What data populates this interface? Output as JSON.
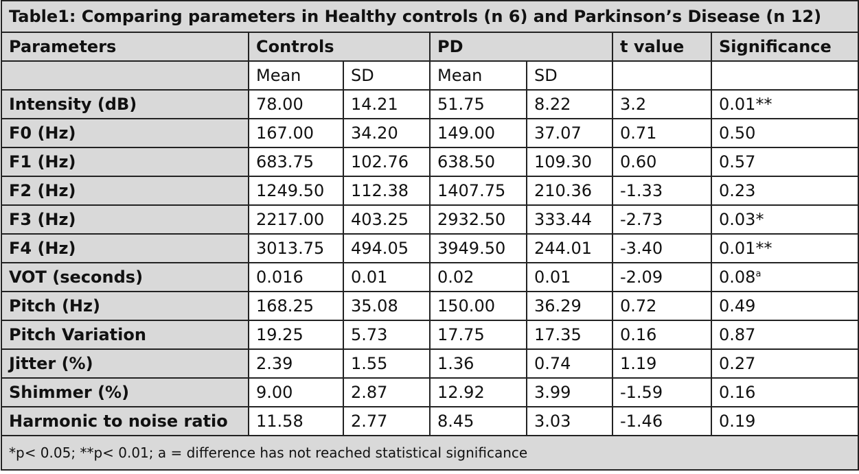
{
  "table": {
    "title": "Table1: Comparing parameters in Healthy controls (n 6) and Parkinson’s Disease (n 12)",
    "headers": {
      "parameters": "Parameters",
      "controls": "Controls",
      "pd": "PD",
      "t_value": "t value",
      "significance": "Significance"
    },
    "subheaders": {
      "controls_mean": "Mean",
      "controls_sd": "SD",
      "pd_mean": "Mean",
      "pd_sd": "SD"
    },
    "rows": [
      {
        "parameter": "Intensity (dB)",
        "controls_mean": "78.00",
        "controls_sd": "14.21",
        "pd_mean": "51.75",
        "pd_sd": "8.22",
        "t_value": "3.2",
        "significance": "0.01**",
        "sig_sup": ""
      },
      {
        "parameter": "F0 (Hz)",
        "controls_mean": "167.00",
        "controls_sd": "34.20",
        "pd_mean": "149.00",
        "pd_sd": "37.07",
        "t_value": "0.71",
        "significance": "0.50",
        "sig_sup": ""
      },
      {
        "parameter": "F1 (Hz)",
        "controls_mean": "683.75",
        "controls_sd": "102.76",
        "pd_mean": "638.50",
        "pd_sd": "109.30",
        "t_value": "0.60",
        "significance": "0.57",
        "sig_sup": ""
      },
      {
        "parameter": "F2 (Hz)",
        "controls_mean": "1249.50",
        "controls_sd": "112.38",
        "pd_mean": "1407.75",
        "pd_sd": "210.36",
        "t_value": "-1.33",
        "significance": "0.23",
        "sig_sup": ""
      },
      {
        "parameter": "F3 (Hz)",
        "controls_mean": "2217.00",
        "controls_sd": "403.25",
        "pd_mean": "2932.50",
        "pd_sd": "333.44",
        "t_value": "-2.73",
        "significance": "0.03*",
        "sig_sup": ""
      },
      {
        "parameter": "F4 (Hz)",
        "controls_mean": "3013.75",
        "controls_sd": "494.05",
        "pd_mean": "3949.50",
        "pd_sd": "244.01",
        "t_value": "-3.40",
        "significance": "0.01**",
        "sig_sup": ""
      },
      {
        "parameter": "VOT (seconds)",
        "controls_mean": "0.016",
        "controls_sd": "0.01",
        "pd_mean": "0.02",
        "pd_sd": "0.01",
        "t_value": "-2.09",
        "significance": "0.08",
        "sig_sup": "a"
      },
      {
        "parameter": "Pitch (Hz)",
        "controls_mean": "168.25",
        "controls_sd": "35.08",
        "pd_mean": "150.00",
        "pd_sd": "36.29",
        "t_value": "0.72",
        "significance": "0.49",
        "sig_sup": ""
      },
      {
        "parameter": "Pitch Variation",
        "controls_mean": "19.25",
        "controls_sd": "5.73",
        "pd_mean": "17.75",
        "pd_sd": "17.35",
        "t_value": "0.16",
        "significance": "0.87",
        "sig_sup": ""
      },
      {
        "parameter": "Jitter (%)",
        "controls_mean": "2.39",
        "controls_sd": "1.55",
        "pd_mean": "1.36",
        "pd_sd": "0.74",
        "t_value": "1.19",
        "significance": "0.27",
        "sig_sup": ""
      },
      {
        "parameter": "Shimmer (%)",
        "controls_mean": "9.00",
        "controls_sd": "2.87",
        "pd_mean": "12.92",
        "pd_sd": "3.99",
        "t_value": "-1.59",
        "significance": "0.16",
        "sig_sup": ""
      },
      {
        "parameter": "Harmonic to noise ratio",
        "controls_mean": "11.58",
        "controls_sd": "2.77",
        "pd_mean": "8.45",
        "pd_sd": "3.03",
        "t_value": "-1.46",
        "significance": "0.19",
        "sig_sup": ""
      }
    ],
    "footnote": "*p< 0.05; **p< 0.01; a = difference has not reached statistical significance"
  }
}
